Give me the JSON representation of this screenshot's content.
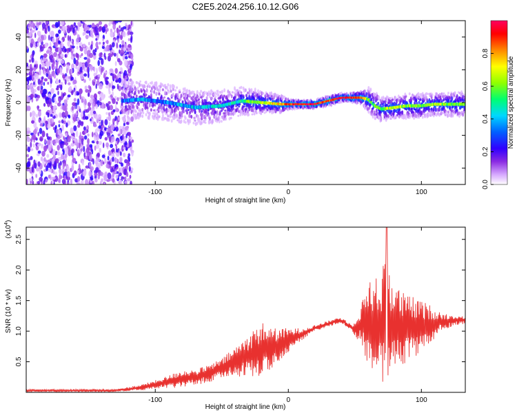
{
  "title": "C2E5.2024.256.10.12.G06",
  "chart_data": [
    {
      "type": "heatmap",
      "name": "spectrogram",
      "xlabel": "Height of straight line (km)",
      "ylabel": "Frequency (Hz)",
      "xlim": [
        -197,
        133
      ],
      "ylim": [
        -50,
        50
      ],
      "xticks": [
        -100,
        0,
        100
      ],
      "yticks": [
        -40,
        -20,
        0,
        20,
        40
      ],
      "colorbar": {
        "label": "Normalized spectral amplitude",
        "range": [
          0,
          1
        ],
        "ticks": [
          "0.0",
          "0.2",
          "0.4",
          "0.6",
          "0.8"
        ],
        "colors": [
          "#ffffff",
          "#c080ff",
          "#6000ff",
          "#0040ff",
          "#00d0ff",
          "#00ff60",
          "#c0ff00",
          "#ffff00",
          "#ff8000",
          "#ff0000",
          "#ff0060"
        ]
      },
      "ridge": {
        "x": [
          -125,
          -110,
          -90,
          -70,
          -50,
          -35,
          -20,
          -5,
          0,
          10,
          20,
          30,
          40,
          45,
          55,
          60,
          65,
          70,
          80,
          90,
          100,
          110,
          120,
          133
        ],
        "freq": [
          1,
          2,
          0,
          -3,
          -2,
          1,
          0,
          -1,
          -1,
          -1,
          -1,
          1,
          3,
          3,
          3,
          2,
          -2,
          -4,
          -3,
          -2,
          -2,
          -1,
          -1,
          -1
        ],
        "amplitude": [
          0.3,
          0.35,
          0.35,
          0.4,
          0.45,
          0.5,
          0.65,
          0.75,
          0.9,
          0.95,
          0.95,
          0.9,
          0.95,
          0.95,
          0.85,
          0.6,
          0.55,
          0.6,
          0.65,
          0.6,
          0.6,
          0.65,
          0.6,
          0.6
        ]
      },
      "noise_region": [
        -197,
        -125
      ]
    },
    {
      "type": "line",
      "name": "snr",
      "xlabel": "Height of straight line (km)",
      "ylabel": "SNR (10 * v/v)",
      "yscale_label": "(x10^4)",
      "xlim": [
        -197,
        133
      ],
      "ylim": [
        0,
        2.7
      ],
      "xticks": [
        -100,
        0,
        100
      ],
      "yticks": [
        0.5,
        1.0,
        1.5,
        2.0,
        2.5
      ],
      "color": "#e8312f",
      "envelope": {
        "x": [
          -197,
          -160,
          -130,
          -110,
          -95,
          -80,
          -70,
          -60,
          -50,
          -40,
          -30,
          -20,
          -10,
          0,
          10,
          20,
          30,
          38,
          42,
          48,
          55,
          60,
          65,
          70,
          73,
          75,
          78,
          85,
          95,
          105,
          115,
          125,
          133
        ],
        "base": [
          0.03,
          0.03,
          0.03,
          0.08,
          0.15,
          0.22,
          0.25,
          0.3,
          0.4,
          0.5,
          0.6,
          0.7,
          0.75,
          0.85,
          0.95,
          1.05,
          1.12,
          1.18,
          1.15,
          1.05,
          1.1,
          1.15,
          1.1,
          1.1,
          1.1,
          1.1,
          1.1,
          1.05,
          1.05,
          1.1,
          1.15,
          1.18,
          1.18
        ],
        "amplitude": [
          0.02,
          0.02,
          0.02,
          0.05,
          0.08,
          0.15,
          0.12,
          0.15,
          0.15,
          0.25,
          0.35,
          0.45,
          0.3,
          0.2,
          0.1,
          0.05,
          0.05,
          0.05,
          0.05,
          0.05,
          0.35,
          0.75,
          0.8,
          0.7,
          1.5,
          1.1,
          0.8,
          0.6,
          0.5,
          0.35,
          0.15,
          0.08,
          0.06
        ]
      }
    }
  ]
}
